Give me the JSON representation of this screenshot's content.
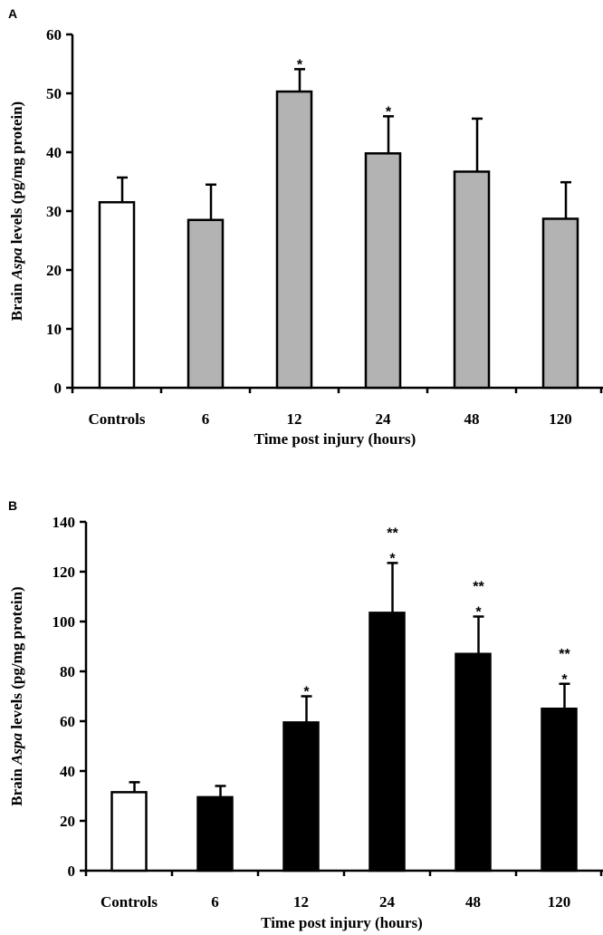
{
  "chart_data": [
    {
      "panel": "A",
      "type": "bar",
      "categories": [
        "Controls",
        "6",
        "12",
        "24",
        "48",
        "120"
      ],
      "values": [
        31.5,
        28.5,
        50.3,
        39.8,
        36.7,
        28.7
      ],
      "errors": [
        4.2,
        6.0,
        3.8,
        6.3,
        9.0,
        6.2
      ],
      "significance": [
        "",
        "",
        "*",
        "*",
        "",
        ""
      ],
      "bar_colors": [
        "#ffffff",
        "#b3b3b3",
        "#b3b3b3",
        "#b3b3b3",
        "#b3b3b3",
        "#b3b3b3"
      ],
      "ylim": [
        0,
        60
      ],
      "yticks": [
        0,
        10,
        20,
        30,
        40,
        50,
        60
      ],
      "ylabel_pre": "Brain ",
      "ylabel_italic": "Aspa",
      "ylabel_post": " levels (pg/mg protein)",
      "xlabel": "Time post injury (hours)",
      "grid": false
    },
    {
      "panel": "B",
      "type": "bar",
      "categories": [
        "Controls",
        "6",
        "12",
        "24",
        "48",
        "120"
      ],
      "values": [
        31.5,
        29.5,
        59.5,
        103.5,
        87.0,
        65.0
      ],
      "errors": [
        4.0,
        4.5,
        10.5,
        20.0,
        15.0,
        10.0
      ],
      "significance": [
        "",
        "",
        "*",
        "**\n*",
        "**\n*",
        "**\n*"
      ],
      "bar_colors": [
        "#ffffff",
        "#000000",
        "#000000",
        "#000000",
        "#000000",
        "#000000"
      ],
      "ylim": [
        0,
        140
      ],
      "yticks": [
        0,
        20,
        40,
        60,
        80,
        100,
        120,
        140
      ],
      "ylabel_pre": "Brain ",
      "ylabel_italic": "Aspa",
      "ylabel_post": " levels (pg/mg protein)",
      "xlabel": "Time post injury (hours)",
      "grid": false
    }
  ]
}
